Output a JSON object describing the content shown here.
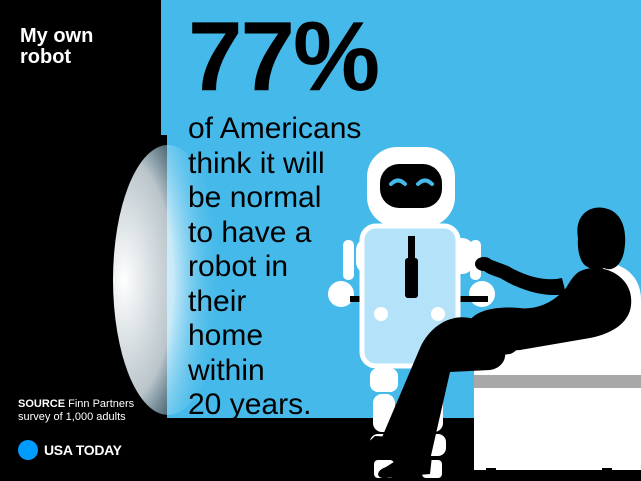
{
  "title_line1": "My own",
  "title_line2": "robot",
  "source_label": "SOURCE",
  "source_text_line1": "Finn Partners",
  "source_text_line2": "survey of 1,000 adults",
  "logo_text": "USA TODAY",
  "stat_value": "77%",
  "statement_lines": [
    "of Americans",
    "think it will",
    "be normal",
    "to have a",
    "robot in",
    "their",
    "home",
    "within",
    "20 years."
  ],
  "colors": {
    "background": "#45b9e9",
    "sidebar": "#000000",
    "logo_dot": "#009bff"
  }
}
